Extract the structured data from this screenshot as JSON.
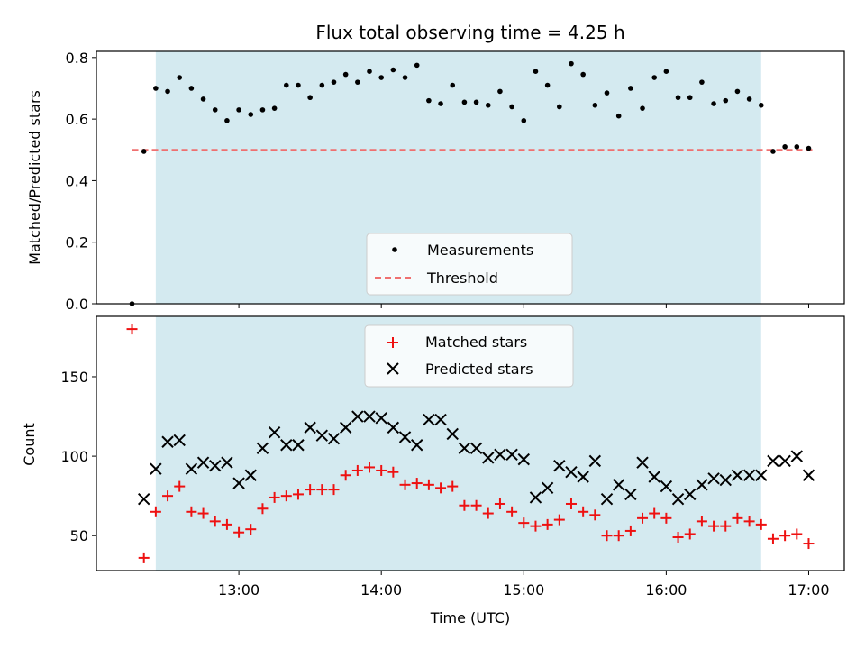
{
  "chart_data": [
    {
      "panel": "top",
      "type": "scatter",
      "title": "Flux total observing time = 4.25 h",
      "xlabel": "",
      "ylabel": "Matched/Predicted stars",
      "ylim": [
        0,
        0.82
      ],
      "yticks": [
        0.0,
        0.2,
        0.4,
        0.6,
        0.8
      ],
      "ytick_labels": [
        "0.0",
        "0.2",
        "0.4",
        "0.6",
        "0.8"
      ],
      "shaded_span": {
        "from": "12:25",
        "to": "16:40",
        "color": "#d4eaf0"
      },
      "threshold": {
        "name": "Threshold",
        "value": 0.5,
        "from": "12:15",
        "to": "17:02",
        "color": "#ef7070"
      },
      "series": [
        {
          "name": "Measurements",
          "marker": "dot",
          "color": "#000000",
          "points": [
            [
              "12:15",
              0.0
            ],
            [
              "12:20",
              0.495
            ],
            [
              "12:25",
              0.7
            ],
            [
              "12:30",
              0.69
            ],
            [
              "12:35",
              0.735
            ],
            [
              "12:40",
              0.7
            ],
            [
              "12:45",
              0.665
            ],
            [
              "12:50",
              0.63
            ],
            [
              "12:55",
              0.595
            ],
            [
              "13:00",
              0.63
            ],
            [
              "13:05",
              0.615
            ],
            [
              "13:10",
              0.63
            ],
            [
              "13:15",
              0.635
            ],
            [
              "13:20",
              0.71
            ],
            [
              "13:25",
              0.71
            ],
            [
              "13:30",
              0.67
            ],
            [
              "13:35",
              0.71
            ],
            [
              "13:40",
              0.72
            ],
            [
              "13:45",
              0.745
            ],
            [
              "13:50",
              0.72
            ],
            [
              "13:55",
              0.755
            ],
            [
              "14:00",
              0.735
            ],
            [
              "14:05",
              0.76
            ],
            [
              "14:10",
              0.735
            ],
            [
              "14:15",
              0.775
            ],
            [
              "14:20",
              0.66
            ],
            [
              "14:25",
              0.65
            ],
            [
              "14:30",
              0.71
            ],
            [
              "14:35",
              0.655
            ],
            [
              "14:40",
              0.655
            ],
            [
              "14:45",
              0.645
            ],
            [
              "14:50",
              0.69
            ],
            [
              "14:55",
              0.64
            ],
            [
              "15:00",
              0.595
            ],
            [
              "15:05",
              0.755
            ],
            [
              "15:10",
              0.71
            ],
            [
              "15:15",
              0.64
            ],
            [
              "15:20",
              0.78
            ],
            [
              "15:25",
              0.745
            ],
            [
              "15:30",
              0.645
            ],
            [
              "15:35",
              0.685
            ],
            [
              "15:40",
              0.61
            ],
            [
              "15:45",
              0.7
            ],
            [
              "15:50",
              0.635
            ],
            [
              "15:55",
              0.735
            ],
            [
              "16:00",
              0.755
            ],
            [
              "16:05",
              0.67
            ],
            [
              "16:10",
              0.67
            ],
            [
              "16:15",
              0.72
            ],
            [
              "16:20",
              0.65
            ],
            [
              "16:25",
              0.66
            ],
            [
              "16:30",
              0.69
            ],
            [
              "16:35",
              0.665
            ],
            [
              "16:40",
              0.645
            ],
            [
              "16:45",
              0.495
            ],
            [
              "16:50",
              0.51
            ],
            [
              "16:55",
              0.51
            ],
            [
              "17:00",
              0.505
            ]
          ]
        }
      ],
      "legend": {
        "position": "lower center",
        "entries": [
          "Measurements",
          "Threshold"
        ]
      }
    },
    {
      "panel": "bottom",
      "type": "scatter",
      "title": "",
      "xlabel": "Time (UTC)",
      "ylabel": "Count",
      "ylim": [
        28,
        188
      ],
      "yticks": [
        50,
        100,
        150
      ],
      "ytick_labels": [
        "50",
        "100",
        "150"
      ],
      "xticks": [
        "13:00",
        "14:00",
        "15:00",
        "16:00",
        "17:00"
      ],
      "xlim": [
        "12:00",
        "17:15"
      ],
      "shaded_span": {
        "from": "12:25",
        "to": "16:40",
        "color": "#d4eaf0"
      },
      "series": [
        {
          "name": "Matched stars",
          "marker": "plus",
          "color": "#ee1111",
          "points": [
            [
              "12:15",
              180
            ],
            [
              "12:20",
              36
            ],
            [
              "12:25",
              65
            ],
            [
              "12:30",
              75
            ],
            [
              "12:35",
              81
            ],
            [
              "12:40",
              65
            ],
            [
              "12:45",
              64
            ],
            [
              "12:50",
              59
            ],
            [
              "12:55",
              57
            ],
            [
              "13:00",
              52
            ],
            [
              "13:05",
              54
            ],
            [
              "13:10",
              67
            ],
            [
              "13:15",
              74
            ],
            [
              "13:20",
              75
            ],
            [
              "13:25",
              76
            ],
            [
              "13:30",
              79
            ],
            [
              "13:35",
              79
            ],
            [
              "13:40",
              79
            ],
            [
              "13:45",
              88
            ],
            [
              "13:50",
              91
            ],
            [
              "13:55",
              93
            ],
            [
              "14:00",
              91
            ],
            [
              "14:05",
              90
            ],
            [
              "14:10",
              82
            ],
            [
              "14:15",
              83
            ],
            [
              "14:20",
              82
            ],
            [
              "14:25",
              80
            ],
            [
              "14:30",
              81
            ],
            [
              "14:35",
              69
            ],
            [
              "14:40",
              69
            ],
            [
              "14:45",
              64
            ],
            [
              "14:50",
              70
            ],
            [
              "14:55",
              65
            ],
            [
              "15:00",
              58
            ],
            [
              "15:05",
              56
            ],
            [
              "15:10",
              57
            ],
            [
              "15:15",
              60
            ],
            [
              "15:20",
              70
            ],
            [
              "15:25",
              65
            ],
            [
              "15:30",
              63
            ],
            [
              "15:35",
              50
            ],
            [
              "15:40",
              50
            ],
            [
              "15:45",
              53
            ],
            [
              "15:50",
              61
            ],
            [
              "15:55",
              64
            ],
            [
              "16:00",
              61
            ],
            [
              "16:05",
              49
            ],
            [
              "16:10",
              51
            ],
            [
              "16:15",
              59
            ],
            [
              "16:20",
              56
            ],
            [
              "16:25",
              56
            ],
            [
              "16:30",
              61
            ],
            [
              "16:35",
              59
            ],
            [
              "16:40",
              57
            ],
            [
              "16:45",
              48
            ],
            [
              "16:50",
              50
            ],
            [
              "16:55",
              51
            ],
            [
              "17:00",
              45
            ]
          ]
        },
        {
          "name": "Predicted stars",
          "marker": "x",
          "color": "#000000",
          "points": [
            [
              "12:20",
              73
            ],
            [
              "12:25",
              92
            ],
            [
              "12:30",
              109
            ],
            [
              "12:35",
              110
            ],
            [
              "12:40",
              92
            ],
            [
              "12:45",
              96
            ],
            [
              "12:50",
              94
            ],
            [
              "12:55",
              96
            ],
            [
              "13:00",
              83
            ],
            [
              "13:05",
              88
            ],
            [
              "13:10",
              105
            ],
            [
              "13:15",
              115
            ],
            [
              "13:20",
              107
            ],
            [
              "13:25",
              107
            ],
            [
              "13:30",
              118
            ],
            [
              "13:35",
              113
            ],
            [
              "13:40",
              111
            ],
            [
              "13:45",
              118
            ],
            [
              "13:50",
              125
            ],
            [
              "13:55",
              125
            ],
            [
              "14:00",
              124
            ],
            [
              "14:05",
              118
            ],
            [
              "14:10",
              112
            ],
            [
              "14:15",
              107
            ],
            [
              "14:20",
              123
            ],
            [
              "14:25",
              123
            ],
            [
              "14:30",
              114
            ],
            [
              "14:35",
              105
            ],
            [
              "14:40",
              105
            ],
            [
              "14:45",
              99
            ],
            [
              "14:50",
              101
            ],
            [
              "14:55",
              101
            ],
            [
              "15:00",
              98
            ],
            [
              "15:05",
              74
            ],
            [
              "15:10",
              80
            ],
            [
              "15:15",
              94
            ],
            [
              "15:20",
              90
            ],
            [
              "15:25",
              87
            ],
            [
              "15:30",
              97
            ],
            [
              "15:35",
              73
            ],
            [
              "15:40",
              82
            ],
            [
              "15:45",
              76
            ],
            [
              "15:50",
              96
            ],
            [
              "15:55",
              87
            ],
            [
              "16:00",
              81
            ],
            [
              "16:05",
              73
            ],
            [
              "16:10",
              76
            ],
            [
              "16:15",
              82
            ],
            [
              "16:20",
              86
            ],
            [
              "16:25",
              85
            ],
            [
              "16:30",
              88
            ],
            [
              "16:35",
              88
            ],
            [
              "16:40",
              88
            ],
            [
              "16:45",
              97
            ],
            [
              "16:50",
              97
            ],
            [
              "16:55",
              100
            ],
            [
              "17:00",
              88
            ]
          ]
        }
      ],
      "legend": {
        "position": "upper center",
        "entries": [
          "Matched stars",
          "Predicted stars"
        ]
      }
    }
  ]
}
